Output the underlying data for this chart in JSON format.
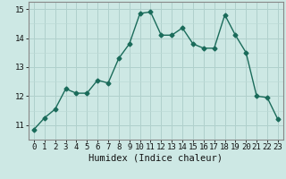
{
  "x": [
    0,
    1,
    2,
    3,
    4,
    5,
    6,
    7,
    8,
    9,
    10,
    11,
    12,
    13,
    14,
    15,
    16,
    17,
    18,
    19,
    20,
    21,
    22,
    23
  ],
  "y": [
    10.85,
    11.25,
    11.55,
    12.25,
    12.1,
    12.1,
    12.55,
    12.45,
    13.3,
    13.8,
    14.85,
    14.9,
    14.1,
    14.1,
    14.35,
    13.8,
    13.65,
    13.65,
    14.8,
    14.1,
    13.5,
    12.0,
    11.95,
    11.2
  ],
  "line_color": "#1a6b5a",
  "marker": "D",
  "marker_size": 2.5,
  "bg_color": "#cde8e4",
  "grid_color_major": "#b0d0cc",
  "grid_color_minor": "#bddad6",
  "xlabel": "Humidex (Indice chaleur)",
  "ylim": [
    10.5,
    15.25
  ],
  "xlim": [
    -0.5,
    23.5
  ],
  "yticks": [
    11,
    12,
    13,
    14,
    15
  ],
  "xticks": [
    0,
    1,
    2,
    3,
    4,
    5,
    6,
    7,
    8,
    9,
    10,
    11,
    12,
    13,
    14,
    15,
    16,
    17,
    18,
    19,
    20,
    21,
    22,
    23
  ],
  "xlabel_fontsize": 7.5,
  "tick_fontsize": 6.5
}
